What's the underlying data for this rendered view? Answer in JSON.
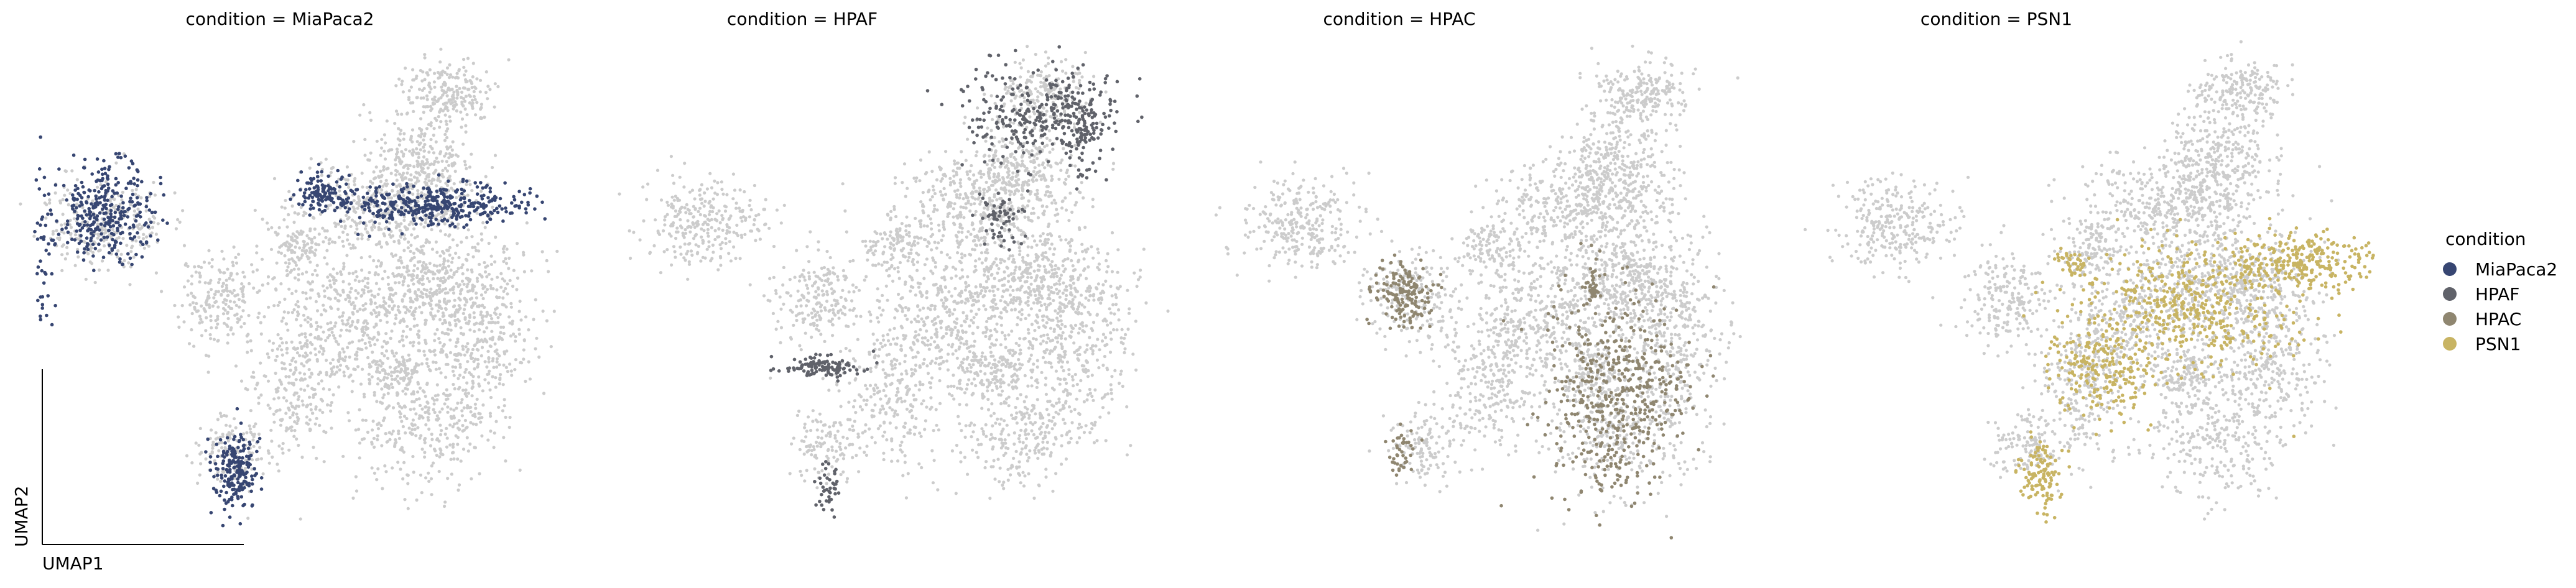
{
  "chart_data": {
    "type": "scatter",
    "xlabel": "UMAP1",
    "ylabel": "UMAP2",
    "facet_variable": "condition",
    "legend": {
      "title": "condition",
      "placement": "right",
      "entries": [
        {
          "label": "MiaPaca2",
          "color": "#374672"
        },
        {
          "label": "HPAF",
          "color": "#60626a"
        },
        {
          "label": "HPAC",
          "color": "#8f8670"
        },
        {
          "label": "PSN1",
          "color": "#c8b463"
        }
      ]
    },
    "background_color": "#cccccc",
    "panels": [
      {
        "title": "condition = MiaPaca2",
        "highlight": "MiaPaca2",
        "color": "#374672"
      },
      {
        "title": "condition = HPAF",
        "highlight": "HPAF",
        "color": "#60626a"
      },
      {
        "title": "condition = HPAC",
        "highlight": "HPAC",
        "color": "#8f8670"
      },
      {
        "title": "condition = PSN1",
        "highlight": "PSN1",
        "color": "#c8b463"
      }
    ],
    "grid": false
  }
}
